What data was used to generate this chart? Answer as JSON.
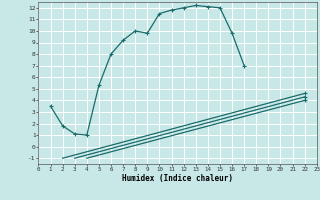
{
  "xlabel": "Humidex (Indice chaleur)",
  "xlim": [
    0,
    23
  ],
  "ylim": [
    -1.5,
    12.5
  ],
  "xticks": [
    0,
    1,
    2,
    3,
    4,
    5,
    6,
    7,
    8,
    9,
    10,
    11,
    12,
    13,
    14,
    15,
    16,
    17,
    18,
    19,
    20,
    21,
    22,
    23
  ],
  "yticks": [
    -1,
    0,
    1,
    2,
    3,
    4,
    5,
    6,
    7,
    8,
    9,
    10,
    11,
    12
  ],
  "bg_color": "#c8e8e8",
  "line_color": "#1a6b6b",
  "grid_color": "#b0d8d8",
  "curve1_x": [
    1,
    2,
    3,
    4,
    5,
    6,
    7,
    8,
    9,
    10,
    11,
    12,
    13,
    14,
    15,
    16,
    17
  ],
  "curve1_y": [
    3.5,
    1.8,
    1.1,
    1.0,
    5.3,
    8.0,
    9.2,
    10.0,
    9.8,
    11.5,
    11.8,
    12.0,
    12.2,
    12.1,
    12.0,
    9.8,
    7.0
  ],
  "line2_x": [
    2,
    22
  ],
  "line2_y": [
    -1.0,
    4.6
  ],
  "line3_x": [
    3,
    22
  ],
  "line3_y": [
    -1.0,
    4.3
  ],
  "line4_x": [
    4,
    22
  ],
  "line4_y": [
    -1.0,
    4.0
  ],
  "marker_style": "+",
  "marker_size": 3.5,
  "linewidth": 0.9
}
